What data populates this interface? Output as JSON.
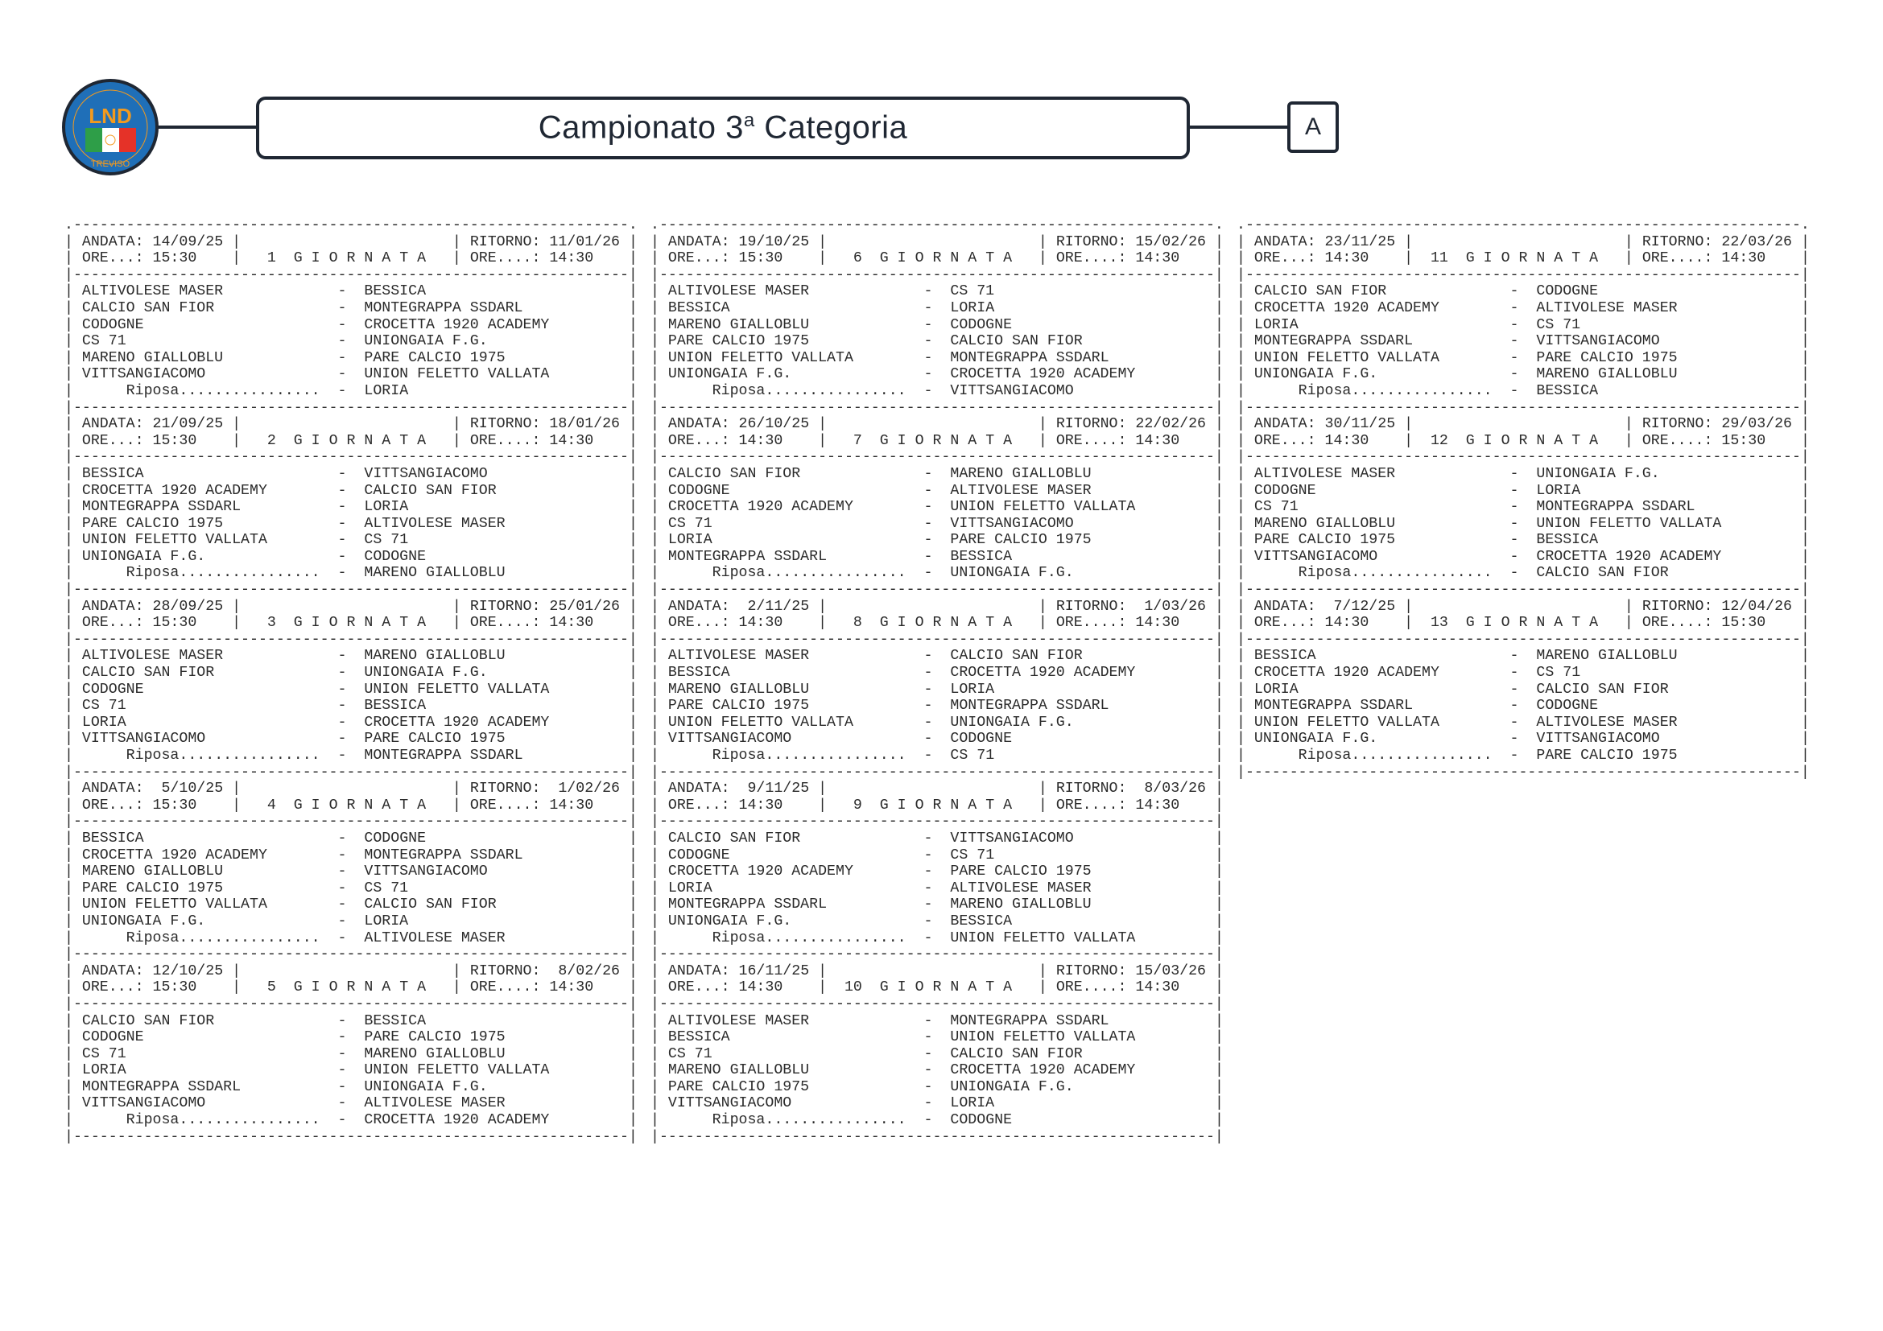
{
  "header": {
    "title_main": "Campionato 3",
    "title_sup": "a",
    "title_rest": " Categoria",
    "group": "A",
    "logo_text": "LND",
    "logo_subtext": "TREVISO",
    "colors": {
      "border": "#1f2733",
      "logo_blue": "#1f6fb8",
      "logo_orange": "#f39a1e"
    }
  },
  "labels": {
    "andata": "ANDATA:",
    "ritorno": "RITORNO:",
    "ore_andata": "ORE...:",
    "ore_ritorno": "ORE....:",
    "giornata": "G I O R N A T A",
    "riposa": "Riposa................"
  },
  "giornate": [
    {
      "number": "1",
      "andata": "14/09/25",
      "ritorno": "11/01/26",
      "ore_andata": "15:30",
      "ore_ritorno": "14:30",
      "matches": [
        {
          "home": "ALTIVOLESE MASER",
          "away": "BESSICA"
        },
        {
          "home": "CALCIO SAN FIOR",
          "away": "MONTEGRAPPA SSDARL"
        },
        {
          "home": "CODOGNE",
          "away": "CROCETTA 1920 ACADEMY"
        },
        {
          "home": "CS 71",
          "away": "UNIONGAIA F.G."
        },
        {
          "home": "MARENO GIALLOBLU",
          "away": "PARE CALCIO 1975"
        },
        {
          "home": "VITTSANGIACOMO",
          "away": "UNION FELETTO VALLATA"
        }
      ],
      "riposa": "LORIA"
    },
    {
      "number": "2",
      "andata": "21/09/25",
      "ritorno": "18/01/26",
      "ore_andata": "15:30",
      "ore_ritorno": "14:30",
      "matches": [
        {
          "home": "BESSICA",
          "away": "VITTSANGIACOMO"
        },
        {
          "home": "CROCETTA 1920 ACADEMY",
          "away": "CALCIO SAN FIOR"
        },
        {
          "home": "MONTEGRAPPA SSDARL",
          "away": "LORIA"
        },
        {
          "home": "PARE CALCIO 1975",
          "away": "ALTIVOLESE MASER"
        },
        {
          "home": "UNION FELETTO VALLATA",
          "away": "CS 71"
        },
        {
          "home": "UNIONGAIA F.G.",
          "away": "CODOGNE"
        }
      ],
      "riposa": "MARENO GIALLOBLU"
    },
    {
      "number": "3",
      "andata": "28/09/25",
      "ritorno": "25/01/26",
      "ore_andata": "15:30",
      "ore_ritorno": "14:30",
      "matches": [
        {
          "home": "ALTIVOLESE MASER",
          "away": "MARENO GIALLOBLU"
        },
        {
          "home": "CALCIO SAN FIOR",
          "away": "UNIONGAIA F.G."
        },
        {
          "home": "CODOGNE",
          "away": "UNION FELETTO VALLATA"
        },
        {
          "home": "CS 71",
          "away": "BESSICA"
        },
        {
          "home": "LORIA",
          "away": "CROCETTA 1920 ACADEMY"
        },
        {
          "home": "VITTSANGIACOMO",
          "away": "PARE CALCIO 1975"
        }
      ],
      "riposa": "MONTEGRAPPA SSDARL"
    },
    {
      "number": "4",
      "andata": "5/10/25",
      "ritorno": "1/02/26",
      "ore_andata": "15:30",
      "ore_ritorno": "14:30",
      "matches": [
        {
          "home": "BESSICA",
          "away": "CODOGNE"
        },
        {
          "home": "CROCETTA 1920 ACADEMY",
          "away": "MONTEGRAPPA SSDARL"
        },
        {
          "home": "MARENO GIALLOBLU",
          "away": "VITTSANGIACOMO"
        },
        {
          "home": "PARE CALCIO 1975",
          "away": "CS 71"
        },
        {
          "home": "UNION FELETTO VALLATA",
          "away": "CALCIO SAN FIOR"
        },
        {
          "home": "UNIONGAIA F.G.",
          "away": "LORIA"
        }
      ],
      "riposa": "ALTIVOLESE MASER"
    },
    {
      "number": "5",
      "andata": "12/10/25",
      "ritorno": "8/02/26",
      "ore_andata": "15:30",
      "ore_ritorno": "14:30",
      "matches": [
        {
          "home": "CALCIO SAN FIOR",
          "away": "BESSICA"
        },
        {
          "home": "CODOGNE",
          "away": "PARE CALCIO 1975"
        },
        {
          "home": "CS 71",
          "away": "MARENO GIALLOBLU"
        },
        {
          "home": "LORIA",
          "away": "UNION FELETTO VALLATA"
        },
        {
          "home": "MONTEGRAPPA SSDARL",
          "away": "UNIONGAIA F.G."
        },
        {
          "home": "VITTSANGIACOMO",
          "away": "ALTIVOLESE MASER"
        }
      ],
      "riposa": "CROCETTA 1920 ACADEMY"
    },
    {
      "number": "6",
      "andata": "19/10/25",
      "ritorno": "15/02/26",
      "ore_andata": "15:30",
      "ore_ritorno": "14:30",
      "matches": [
        {
          "home": "ALTIVOLESE MASER",
          "away": "CS 71"
        },
        {
          "home": "BESSICA",
          "away": "LORIA"
        },
        {
          "home": "MARENO GIALLOBLU",
          "away": "CODOGNE"
        },
        {
          "home": "PARE CALCIO 1975",
          "away": "CALCIO SAN FIOR"
        },
        {
          "home": "UNION FELETTO VALLATA",
          "away": "MONTEGRAPPA SSDARL"
        },
        {
          "home": "UNIONGAIA F.G.",
          "away": "CROCETTA 1920 ACADEMY"
        }
      ],
      "riposa": "VITTSANGIACOMO"
    },
    {
      "number": "7",
      "andata": "26/10/25",
      "ritorno": "22/02/26",
      "ore_andata": "14:30",
      "ore_ritorno": "14:30",
      "matches": [
        {
          "home": "CALCIO SAN FIOR",
          "away": "MARENO GIALLOBLU"
        },
        {
          "home": "CODOGNE",
          "away": "ALTIVOLESE MASER"
        },
        {
          "home": "CROCETTA 1920 ACADEMY",
          "away": "UNION FELETTO VALLATA"
        },
        {
          "home": "CS 71",
          "away": "VITTSANGIACOMO"
        },
        {
          "home": "LORIA",
          "away": "PARE CALCIO 1975"
        },
        {
          "home": "MONTEGRAPPA SSDARL",
          "away": "BESSICA"
        }
      ],
      "riposa": "UNIONGAIA F.G."
    },
    {
      "number": "8",
      "andata": "2/11/25",
      "ritorno": "1/03/26",
      "ore_andata": "14:30",
      "ore_ritorno": "14:30",
      "matches": [
        {
          "home": "ALTIVOLESE MASER",
          "away": "CALCIO SAN FIOR"
        },
        {
          "home": "BESSICA",
          "away": "CROCETTA 1920 ACADEMY"
        },
        {
          "home": "MARENO GIALLOBLU",
          "away": "LORIA"
        },
        {
          "home": "PARE CALCIO 1975",
          "away": "MONTEGRAPPA SSDARL"
        },
        {
          "home": "UNION FELETTO VALLATA",
          "away": "UNIONGAIA F.G."
        },
        {
          "home": "VITTSANGIACOMO",
          "away": "CODOGNE"
        }
      ],
      "riposa": "CS 71"
    },
    {
      "number": "9",
      "andata": "9/11/25",
      "ritorno": "8/03/26",
      "ore_andata": "14:30",
      "ore_ritorno": "14:30",
      "matches": [
        {
          "home": "CALCIO SAN FIOR",
          "away": "VITTSANGIACOMO"
        },
        {
          "home": "CODOGNE",
          "away": "CS 71"
        },
        {
          "home": "CROCETTA 1920 ACADEMY",
          "away": "PARE CALCIO 1975"
        },
        {
          "home": "LORIA",
          "away": "ALTIVOLESE MASER"
        },
        {
          "home": "MONTEGRAPPA SSDARL",
          "away": "MARENO GIALLOBLU"
        },
        {
          "home": "UNIONGAIA F.G.",
          "away": "BESSICA"
        }
      ],
      "riposa": "UNION FELETTO VALLATA"
    },
    {
      "number": "10",
      "andata": "16/11/25",
      "ritorno": "15/03/26",
      "ore_andata": "14:30",
      "ore_ritorno": "14:30",
      "matches": [
        {
          "home": "ALTIVOLESE MASER",
          "away": "MONTEGRAPPA SSDARL"
        },
        {
          "home": "BESSICA",
          "away": "UNION FELETTO VALLATA"
        },
        {
          "home": "CS 71",
          "away": "CALCIO SAN FIOR"
        },
        {
          "home": "MARENO GIALLOBLU",
          "away": "CROCETTA 1920 ACADEMY"
        },
        {
          "home": "PARE CALCIO 1975",
          "away": "UNIONGAIA F.G."
        },
        {
          "home": "VITTSANGIACOMO",
          "away": "LORIA"
        }
      ],
      "riposa": "CODOGNE"
    },
    {
      "number": "11",
      "andata": "23/11/25",
      "ritorno": "22/03/26",
      "ore_andata": "14:30",
      "ore_ritorno": "14:30",
      "matches": [
        {
          "home": "CALCIO SAN FIOR",
          "away": "CODOGNE"
        },
        {
          "home": "CROCETTA 1920 ACADEMY",
          "away": "ALTIVOLESE MASER"
        },
        {
          "home": "LORIA",
          "away": "CS 71"
        },
        {
          "home": "MONTEGRAPPA SSDARL",
          "away": "VITTSANGIACOMO"
        },
        {
          "home": "UNION FELETTO VALLATA",
          "away": "PARE CALCIO 1975"
        },
        {
          "home": "UNIONGAIA F.G.",
          "away": "MARENO GIALLOBLU"
        }
      ],
      "riposa": "BESSICA"
    },
    {
      "number": "12",
      "andata": "30/11/25",
      "ritorno": "29/03/26",
      "ore_andata": "14:30",
      "ore_ritorno": "15:30",
      "matches": [
        {
          "home": "ALTIVOLESE MASER",
          "away": "UNIONGAIA F.G."
        },
        {
          "home": "CODOGNE",
          "away": "LORIA"
        },
        {
          "home": "CS 71",
          "away": "MONTEGRAPPA SSDARL"
        },
        {
          "home": "MARENO GIALLOBLU",
          "away": "UNION FELETTO VALLATA"
        },
        {
          "home": "PARE CALCIO 1975",
          "away": "BESSICA"
        },
        {
          "home": "VITTSANGIACOMO",
          "away": "CROCETTA 1920 ACADEMY"
        }
      ],
      "riposa": "CALCIO SAN FIOR"
    },
    {
      "number": "13",
      "andata": "7/12/25",
      "ritorno": "12/04/26",
      "ore_andata": "14:30",
      "ore_ritorno": "15:30",
      "matches": [
        {
          "home": "BESSICA",
          "away": "MARENO GIALLOBLU"
        },
        {
          "home": "CROCETTA 1920 ACADEMY",
          "away": "CS 71"
        },
        {
          "home": "LORIA",
          "away": "CALCIO SAN FIOR"
        },
        {
          "home": "MONTEGRAPPA SSDARL",
          "away": "CODOGNE"
        },
        {
          "home": "UNION FELETTO VALLATA",
          "away": "ALTIVOLESE MASER"
        },
        {
          "home": "UNIONGAIA F.G.",
          "away": "VITTSANGIACOMO"
        }
      ],
      "riposa": "PARE CALCIO 1975"
    }
  ]
}
